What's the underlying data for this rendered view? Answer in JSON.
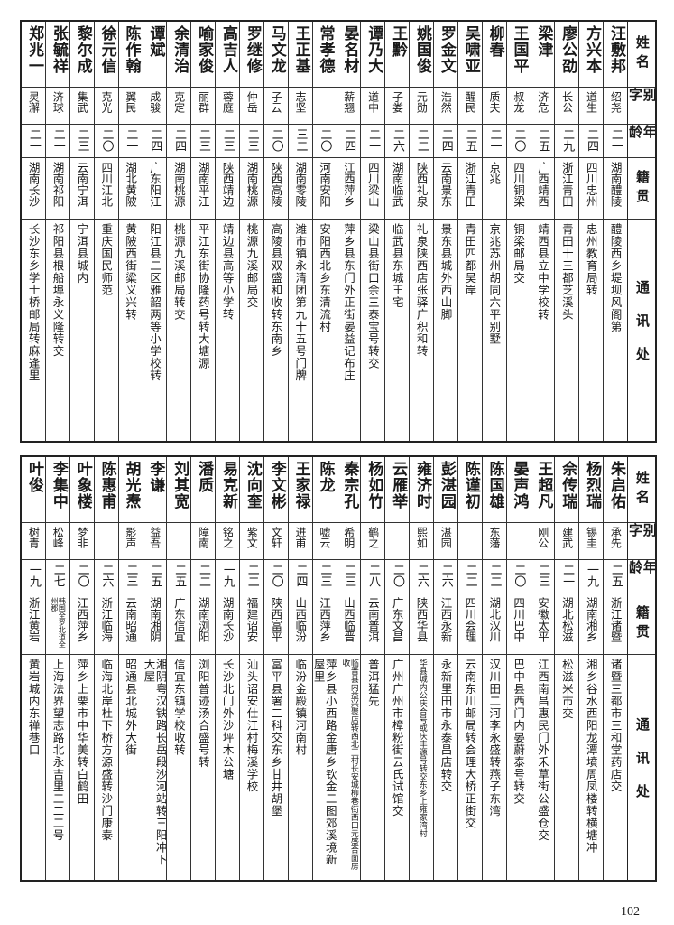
{
  "headers": {
    "name": "姓名",
    "alias": "别字",
    "age": "年龄",
    "native": "籍贯",
    "address": "通讯处"
  },
  "tables": [
    {
      "rows": [
        {
          "name": "汪敷邦",
          "alias": "绍尧",
          "age": "二一",
          "native": "湖南醴陵",
          "address": "醴陵西乡堤坝风阁第"
        },
        {
          "name": "方兴本",
          "alias": "道生",
          "age": "二四",
          "native": "四川忠州",
          "address": "忠州教育局转"
        },
        {
          "name": "廖公劭",
          "alias": "长公",
          "age": "二九",
          "native": "浙江青田",
          "address": "青田十三都芝溪头"
        },
        {
          "name": "梁津",
          "alias": "济危",
          "age": "二五",
          "native": "广西靖西",
          "address": "靖西县立中学校转"
        },
        {
          "name": "王国平",
          "alias": "叔龙",
          "age": "二〇",
          "native": "四川铜梁",
          "address": "铜梁邮局交"
        },
        {
          "name": "柳春",
          "alias": "质夫",
          "age": "二一",
          "native": "京兆",
          "address": "京兆苏州胡同六平别墅"
        },
        {
          "name": "吴啸亚",
          "alias": "醒民",
          "age": "二五",
          "native": "浙江青田",
          "address": "青田四都吴岸"
        },
        {
          "name": "罗金文",
          "alias": "浩然",
          "age": "二四",
          "native": "云南景东",
          "address": "景东县城外西山脚"
        },
        {
          "name": "姚国俊",
          "alias": "元勋",
          "age": "二二",
          "native": "陕西礼泉",
          "address": "礼泉陕西店张驿广积和转"
        },
        {
          "name": "王黔",
          "alias": "子娄",
          "age": "二六",
          "native": "湖南临武",
          "address": "临武县东城王宅"
        },
        {
          "name": "谭乃大",
          "alias": "道中",
          "age": "二一",
          "native": "四川梁山",
          "address": "梁山县街口余三泰宝号转交"
        },
        {
          "name": "晏名材",
          "alias": "薪翘",
          "age": "二四",
          "native": "江西萍乡",
          "address": "萍乡县东门外正街晏益记布庄"
        },
        {
          "name": "常孝德",
          "alias": "",
          "age": "二〇",
          "native": "河南安阳",
          "address": "安阳西北乡东清流村"
        },
        {
          "name": "王正基",
          "alias": "志坚",
          "age": "三二",
          "native": "湖南零陵",
          "address": "潍市镇永清团第九十五号门牌"
        },
        {
          "name": "马文龙",
          "alias": "子云",
          "age": "二〇",
          "native": "陕西高陵",
          "address": "高陵县双盛和收转东南乡"
        },
        {
          "name": "罗继修",
          "alias": "仲岳",
          "age": "二三",
          "native": "湖南桃源",
          "address": "桃源九溪邮局交"
        },
        {
          "name": "高吉人",
          "alias": "蓉庭",
          "age": "二三",
          "native": "陕西靖边",
          "address": "靖边县高等小学转"
        },
        {
          "name": "喻家俊",
          "alias": "丽群",
          "age": "二三",
          "native": "湖南平江",
          "address": "平江东街协隆药号转大塘源"
        },
        {
          "name": "余清治",
          "alias": "克定",
          "age": "二四",
          "native": "湖南桃源",
          "address": "桃源九溪邮局转交"
        },
        {
          "name": "谭斌",
          "alias": "成骏",
          "age": "二四",
          "native": "广东阳江",
          "address": "阳江县二区雅韶两等小学校转"
        },
        {
          "name": "陈作翰",
          "alias": "翼民",
          "age": "二一",
          "native": "湖北黄陂",
          "address": "黄陂西街粱义兴转"
        },
        {
          "name": "徐元信",
          "alias": "克光",
          "age": "二〇",
          "native": "四川江北",
          "address": "重庆国民师范"
        },
        {
          "name": "黎尔成",
          "alias": "集武",
          "age": "二三",
          "native": "云南宁洱",
          "address": "宁洱县城内"
        },
        {
          "name": "张毓祥",
          "alias": "济球",
          "age": "二一",
          "native": "湖南祁阳",
          "address": "祁阳县根船埠永义隆转交"
        },
        {
          "name": "郑兆一",
          "alias": "灵澥",
          "age": "二一",
          "native": "湖南长沙",
          "address": "长沙东乡学士桥邮局转麻逢里"
        }
      ]
    },
    {
      "rows": [
        {
          "name": "朱启佑",
          "alias": "承先",
          "age": "二五",
          "native": "浙江诸暨",
          "address": "诸暨三都市三和堂药店交"
        },
        {
          "name": "杨烈瑞",
          "alias": "锡圭",
          "age": "一九",
          "native": "湖南湘乡",
          "address": "湘乡谷水西阳龙潭墳周凤楼转横塘冲"
        },
        {
          "name": "佘传瑞",
          "alias": "建武",
          "age": "二一",
          "native": "湖北松滋",
          "address": "松滋米市交"
        },
        {
          "name": "王超凡",
          "alias": "刚公",
          "age": "二三",
          "native": "安徽太平",
          "address": "江西南昌惠民门外禾草街公盛仓交"
        },
        {
          "name": "晏声鸿",
          "alias": "",
          "age": "二〇",
          "native": "四川巴中",
          "address": "巴中县西门内晏蔚泰号转交"
        },
        {
          "name": "陈国雄",
          "alias": "东藩",
          "age": "二二",
          "native": "湖北汉川",
          "address": "汉川田二河李永盛转燕子东湾"
        },
        {
          "name": "陈谨初",
          "alias": "",
          "age": "二二",
          "native": "四川会理",
          "address": "云南东川邮局转会理大桥正街交"
        },
        {
          "name": "彭湛园",
          "alias": "湛园",
          "age": "二六",
          "native": "江西永新",
          "address": "永新里田市永泰昌店转交"
        },
        {
          "name": "雍济时",
          "alias": "熙如",
          "age": "二六",
          "native": "陕西华县",
          "address": "华县城内公庆合号或庆丰源号转交东乡上雍家湾村"
        },
        {
          "name": "云雁举",
          "alias": "",
          "age": "二〇",
          "native": "广东文昌",
          "address": "广州广州市樟粉街云氏试馆交"
        },
        {
          "name": "杨如竹",
          "alias": "鹤之",
          "age": "二八",
          "native": "云南普洱",
          "address": "普洱猛先"
        },
        {
          "name": "秦宗孔",
          "alias": "希明",
          "age": "二三",
          "native": "山西临晋",
          "address": "临晋县内益兴聚店转西北王村长安城柳巷街西口元盛合面房收"
        },
        {
          "name": "陈龙",
          "alias": "嘘云",
          "age": "二三",
          "native": "江西萍乡",
          "address": "萍乡县小西路金唐乡钦金二图郊溪境新屋里"
        },
        {
          "name": "王家禄",
          "alias": "进甫",
          "age": "二四",
          "native": "山西临汾",
          "address": "临汾金殿镇河南村"
        },
        {
          "name": "李文彬",
          "alias": "文轩",
          "age": "二〇",
          "native": "陕西富平",
          "address": "富平县署二科交东乡甘井胡堡"
        },
        {
          "name": "沈向奎",
          "alias": "紫文",
          "age": "二二",
          "native": "福建诏安",
          "address": "汕头诏安仕江村梅溪学校"
        },
        {
          "name": "易克新",
          "alias": "铭之",
          "age": "一九",
          "native": "湖南长沙",
          "address": "长沙北门外沙坪木公塘"
        },
        {
          "name": "潘质",
          "alias": "障南",
          "age": "二二",
          "native": "湖南浏阳",
          "address": "浏阳普迹汤合盛号转"
        },
        {
          "name": "刘其宽",
          "alias": "",
          "age": "二五",
          "native": "广东信宜",
          "address": "信宜东镇学校收转"
        },
        {
          "name": "李谦",
          "alias": "益吾",
          "age": "二五",
          "native": "湖南湘阴",
          "address": "湘阴粤汉铁路长岳段沙河站转三阳冲下大屋"
        },
        {
          "name": "胡光焘",
          "alias": "影声",
          "age": "二三",
          "native": "云南昭通",
          "address": "昭通县北城外大街"
        },
        {
          "name": "陈惠甫",
          "alias": "",
          "age": "二六",
          "native": "浙江临海",
          "address": "临海北岸杜下桥方源盛转沙门康泰"
        },
        {
          "name": "叶象楼",
          "alias": "梦非",
          "age": "二〇",
          "native": "江西萍乡",
          "address": "萍乡上栗市中华美转白鹤田"
        },
        {
          "name": "李集中",
          "alias": "松峰",
          "age": "二七",
          "native": "韩国全罗北道全州郡",
          "address": "上海法界望志路北永吉里二二二号"
        },
        {
          "name": "叶俊",
          "alias": "树青",
          "age": "一九",
          "native": "浙江黄岩",
          "address": "黄岩城内东禅巷口"
        }
      ]
    }
  ],
  "page_number": "102"
}
